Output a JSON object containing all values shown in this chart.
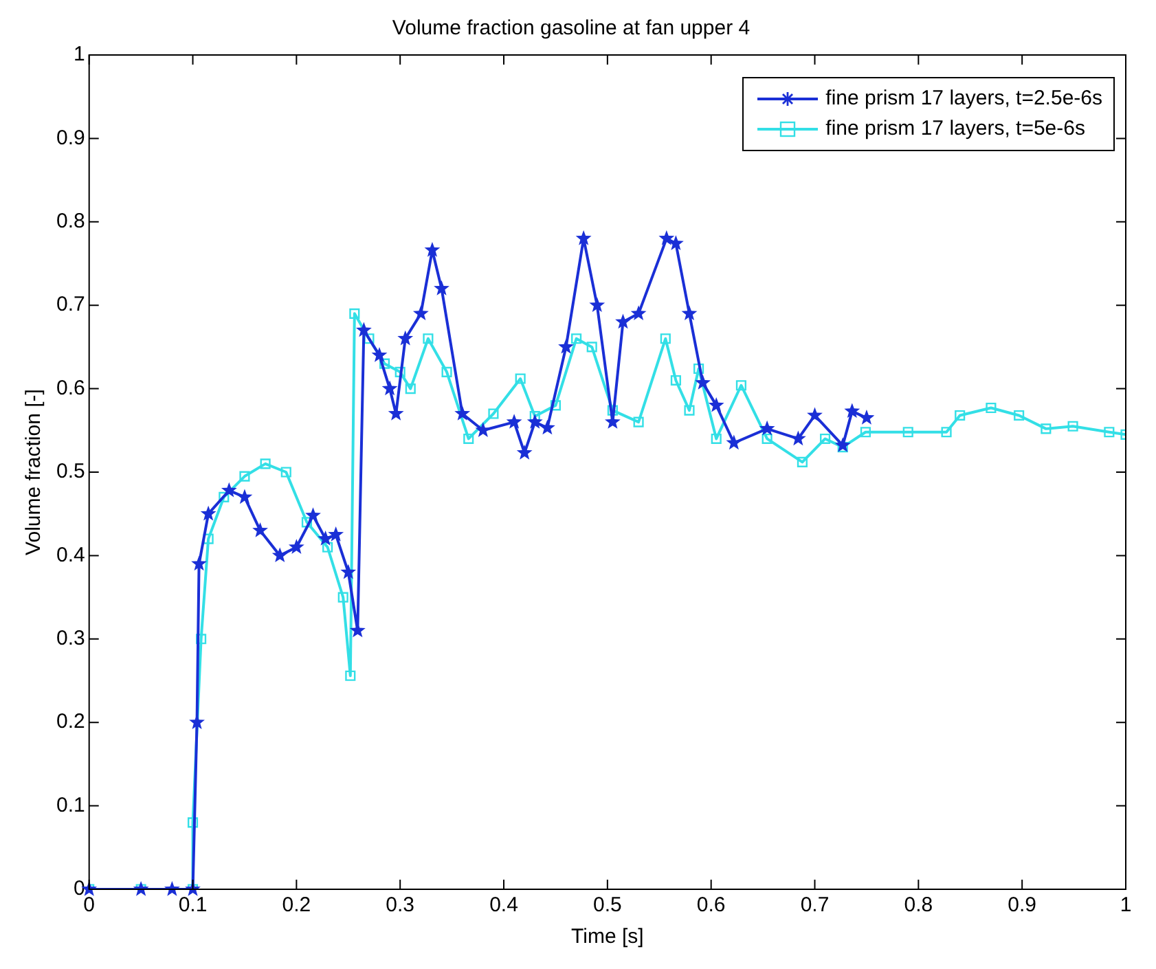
{
  "chart_data": {
    "type": "line",
    "title": "Volume fraction gasoline at fan upper 4",
    "xlabel": "Time [s]",
    "ylabel": "Volume fraction [-]",
    "xlim": [
      0,
      1
    ],
    "xticks": [
      0,
      0.1,
      0.2,
      0.3,
      0.4,
      0.5,
      0.6,
      0.7,
      0.8,
      0.9,
      1
    ],
    "ylim": [
      0,
      1
    ],
    "yticks": [
      0,
      0.1,
      0.2,
      0.3,
      0.4,
      0.5,
      0.6,
      0.7,
      0.8,
      0.9,
      1
    ],
    "grid": false,
    "legend": "top right",
    "line_style": "solid",
    "series": [
      {
        "name": "fine prism 17 layers, t=2.5e-6s",
        "color": "#1a2fd6",
        "marker": "star",
        "x": [
          0,
          0.05,
          0.08,
          0.1,
          0.104,
          0.106,
          0.115,
          0.135,
          0.15,
          0.165,
          0.184,
          0.2,
          0.216,
          0.228,
          0.238,
          0.25,
          0.259,
          0.265,
          0.28,
          0.29,
          0.296,
          0.305,
          0.32,
          0.331,
          0.34,
          0.36,
          0.38,
          0.41,
          0.42,
          0.43,
          0.442,
          0.46,
          0.477,
          0.49,
          0.505,
          0.515,
          0.53,
          0.557,
          0.566,
          0.579,
          0.592,
          0.605,
          0.622,
          0.654,
          0.684,
          0.7,
          0.727,
          0.736,
          0.75
        ],
        "values": [
          0,
          0,
          0,
          0,
          0.2,
          0.39,
          0.45,
          0.478,
          0.47,
          0.43,
          0.4,
          0.41,
          0.448,
          0.42,
          0.425,
          0.38,
          0.31,
          0.67,
          0.64,
          0.6,
          0.57,
          0.66,
          0.69,
          0.766,
          0.72,
          0.57,
          0.55,
          0.56,
          0.523,
          0.56,
          0.553,
          0.65,
          0.78,
          0.7,
          0.56,
          0.68,
          0.69,
          0.78,
          0.774,
          0.69,
          0.607,
          0.58,
          0.535,
          0.552,
          0.54,
          0.568,
          0.532,
          0.573,
          0.565
        ]
      },
      {
        "name": "fine prism 17 layers, t=5e-6s",
        "color": "#33dfe6",
        "marker": "square",
        "x": [
          0,
          0.05,
          0.1,
          0.1,
          0.108,
          0.115,
          0.13,
          0.15,
          0.17,
          0.19,
          0.21,
          0.23,
          0.245,
          0.252,
          0.256,
          0.27,
          0.285,
          0.3,
          0.31,
          0.327,
          0.345,
          0.366,
          0.39,
          0.416,
          0.43,
          0.45,
          0.47,
          0.485,
          0.505,
          0.53,
          0.556,
          0.566,
          0.579,
          0.588,
          0.605,
          0.629,
          0.654,
          0.688,
          0.71,
          0.727,
          0.749,
          0.79,
          0.827,
          0.84,
          0.87,
          0.897,
          0.923,
          0.949,
          0.984,
          1
        ],
        "values": [
          0,
          0,
          0,
          0.08,
          0.3,
          0.42,
          0.47,
          0.495,
          0.51,
          0.5,
          0.44,
          0.41,
          0.35,
          0.256,
          0.69,
          0.66,
          0.63,
          0.62,
          0.6,
          0.66,
          0.62,
          0.54,
          0.57,
          0.612,
          0.567,
          0.58,
          0.66,
          0.65,
          0.574,
          0.56,
          0.66,
          0.61,
          0.574,
          0.624,
          0.54,
          0.604,
          0.54,
          0.512,
          0.54,
          0.53,
          0.548,
          0.548,
          0.548,
          0.568,
          0.577,
          0.568,
          0.552,
          0.555,
          0.548,
          0.545
        ]
      }
    ]
  }
}
